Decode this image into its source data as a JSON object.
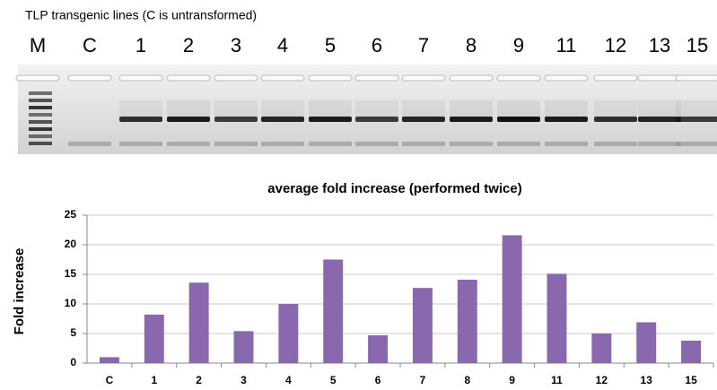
{
  "gel": {
    "caption": "TLP transgenic lines (C is untransformed)",
    "lanes": [
      "M",
      "C",
      "1",
      "2",
      "3",
      "4",
      "5",
      "6",
      "7",
      "8",
      "9",
      "11",
      "12",
      "13",
      "15"
    ]
  },
  "chart_data": {
    "type": "bar",
    "title": "average fold increase (performed twice)",
    "y_label": "Fold increase",
    "categories": [
      "C",
      "1",
      "2",
      "3",
      "4",
      "5",
      "6",
      "7",
      "8",
      "9",
      "11",
      "12",
      "13",
      "15"
    ],
    "values": [
      1,
      8.2,
      13.6,
      5.4,
      10,
      17.5,
      4.7,
      12.7,
      14.1,
      21.6,
      15.1,
      5,
      6.9,
      3.8
    ],
    "color": "#8a68ad",
    "ylim": [
      0,
      25
    ],
    "yticks": [
      0,
      5,
      10,
      15,
      20,
      25
    ],
    "grid": true
  }
}
